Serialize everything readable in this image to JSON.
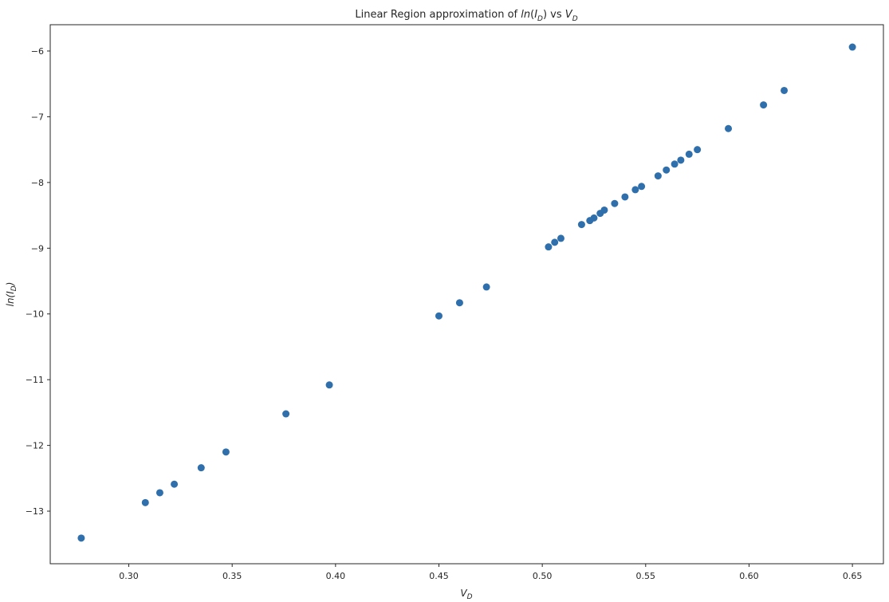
{
  "chart_data": {
    "type": "scatter",
    "title": "Linear Region approximation of ln(I_D) vs V_D",
    "title_parts": {
      "prefix": "Linear Region approximation of ",
      "ln": "ln",
      "paren_open": "(",
      "I": "I",
      "I_sub": "D",
      "paren_close": ")",
      "vs": " vs ",
      "V": "V",
      "V_sub": "D"
    },
    "xlabel": "V_D",
    "xlabel_parts": {
      "main": "V",
      "sub": "D"
    },
    "ylabel": "ln(I_D)",
    "ylabel_parts": {
      "main": "ln(I",
      "sub": "D",
      "close": ")"
    },
    "xlim": [
      0.262,
      0.665
    ],
    "ylim": [
      -13.8,
      -5.6
    ],
    "xticks": [
      0.3,
      0.35,
      0.4,
      0.45,
      0.5,
      0.55,
      0.6,
      0.65
    ],
    "xtick_labels": [
      "0.30",
      "0.35",
      "0.40",
      "0.45",
      "0.50",
      "0.55",
      "0.60",
      "0.65"
    ],
    "yticks": [
      -6,
      -7,
      -8,
      -9,
      -10,
      -11,
      -12,
      -13
    ],
    "ytick_labels": [
      "−6",
      "−7",
      "−8",
      "−9",
      "−10",
      "−11",
      "−12",
      "−13"
    ],
    "grid": false,
    "marker_color": "#2f6fab",
    "points": [
      {
        "x": 0.277,
        "y": -13.41
      },
      {
        "x": 0.308,
        "y": -12.87
      },
      {
        "x": 0.315,
        "y": -12.72
      },
      {
        "x": 0.322,
        "y": -12.59
      },
      {
        "x": 0.335,
        "y": -12.34
      },
      {
        "x": 0.347,
        "y": -12.1
      },
      {
        "x": 0.376,
        "y": -11.52
      },
      {
        "x": 0.397,
        "y": -11.08
      },
      {
        "x": 0.45,
        "y": -10.03
      },
      {
        "x": 0.46,
        "y": -9.83
      },
      {
        "x": 0.473,
        "y": -9.59
      },
      {
        "x": 0.503,
        "y": -8.98
      },
      {
        "x": 0.506,
        "y": -8.91
      },
      {
        "x": 0.509,
        "y": -8.85
      },
      {
        "x": 0.519,
        "y": -8.64
      },
      {
        "x": 0.523,
        "y": -8.58
      },
      {
        "x": 0.525,
        "y": -8.54
      },
      {
        "x": 0.528,
        "y": -8.47
      },
      {
        "x": 0.53,
        "y": -8.42
      },
      {
        "x": 0.535,
        "y": -8.32
      },
      {
        "x": 0.54,
        "y": -8.22
      },
      {
        "x": 0.545,
        "y": -8.11
      },
      {
        "x": 0.548,
        "y": -8.06
      },
      {
        "x": 0.556,
        "y": -7.9
      },
      {
        "x": 0.56,
        "y": -7.81
      },
      {
        "x": 0.564,
        "y": -7.72
      },
      {
        "x": 0.567,
        "y": -7.66
      },
      {
        "x": 0.571,
        "y": -7.57
      },
      {
        "x": 0.575,
        "y": -7.5
      },
      {
        "x": 0.59,
        "y": -7.18
      },
      {
        "x": 0.607,
        "y": -6.82
      },
      {
        "x": 0.617,
        "y": -6.6
      },
      {
        "x": 0.65,
        "y": -5.94
      }
    ]
  }
}
